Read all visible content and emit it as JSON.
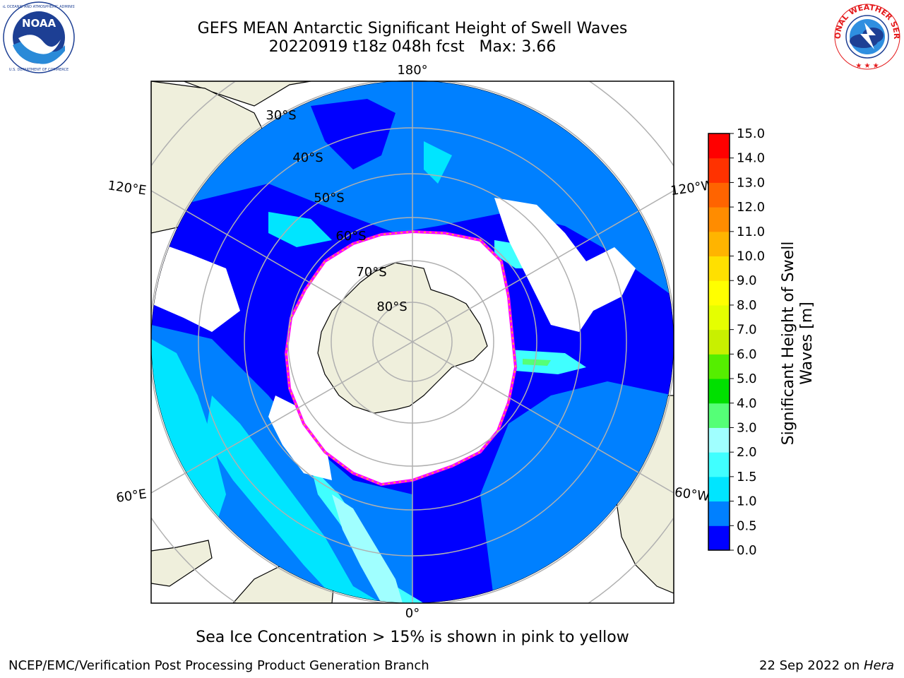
{
  "title": {
    "line1": "GEFS MEAN Antarctic Significant Height of Swell Waves",
    "line2": "20220919 t18z 048h fcst   Max: 3.66"
  },
  "logos": {
    "left": {
      "text": "NOAA",
      "icon": "noaa-logo-icon",
      "color": "#1d3f94"
    },
    "right": {
      "icon": "nws-logo-icon",
      "color": "#e41a1c"
    }
  },
  "map": {
    "projection": "south-polar-stereographic",
    "ocean_colors": {
      "0.0-0.5": "#0000ff",
      "0.5-1.0": "#0080ff",
      "1.0-1.5": "#00e5ff",
      "1.5-2.0": "#40ffff",
      "2.0-2.5": "#a0ffff"
    },
    "land_color": "#efefdc",
    "ice_edge_colors": [
      "#ff00ff",
      "#ffd700"
    ],
    "longitude_labels": [
      "180°",
      "120°E",
      "120°W",
      "60°E",
      "60°W",
      "0°"
    ],
    "latitude_labels": [
      "30°S",
      "40°S",
      "50°S",
      "60°S",
      "70°S",
      "80°S"
    ]
  },
  "colorbar": {
    "label": "Significant Height of Swell Waves [m]",
    "ticks": [
      "0.0",
      "0.5",
      "1.0",
      "1.5",
      "2.0",
      "3.0",
      "4.0",
      "5.0",
      "6.0",
      "7.0",
      "8.0",
      "9.0",
      "10.0",
      "11.0",
      "12.0",
      "13.0",
      "14.0",
      "15.0"
    ],
    "colors": [
      "#0000ff",
      "#0080ff",
      "#00e5ff",
      "#40ffff",
      "#a0ffff",
      "#55ff77",
      "#00e000",
      "#55ee00",
      "#c8f000",
      "#e5ff00",
      "#ffff00",
      "#ffe000",
      "#ffb400",
      "#ff8c00",
      "#ff6400",
      "#ff3200",
      "#ff0000"
    ]
  },
  "footnote": "Sea Ice Concentration > 15% is shown in pink to yellow",
  "credit": "NCEP/EMC/Verification Post Processing Product Generation Branch",
  "stamp": {
    "date": "22 Sep 2022 on ",
    "machine": "Hera"
  }
}
